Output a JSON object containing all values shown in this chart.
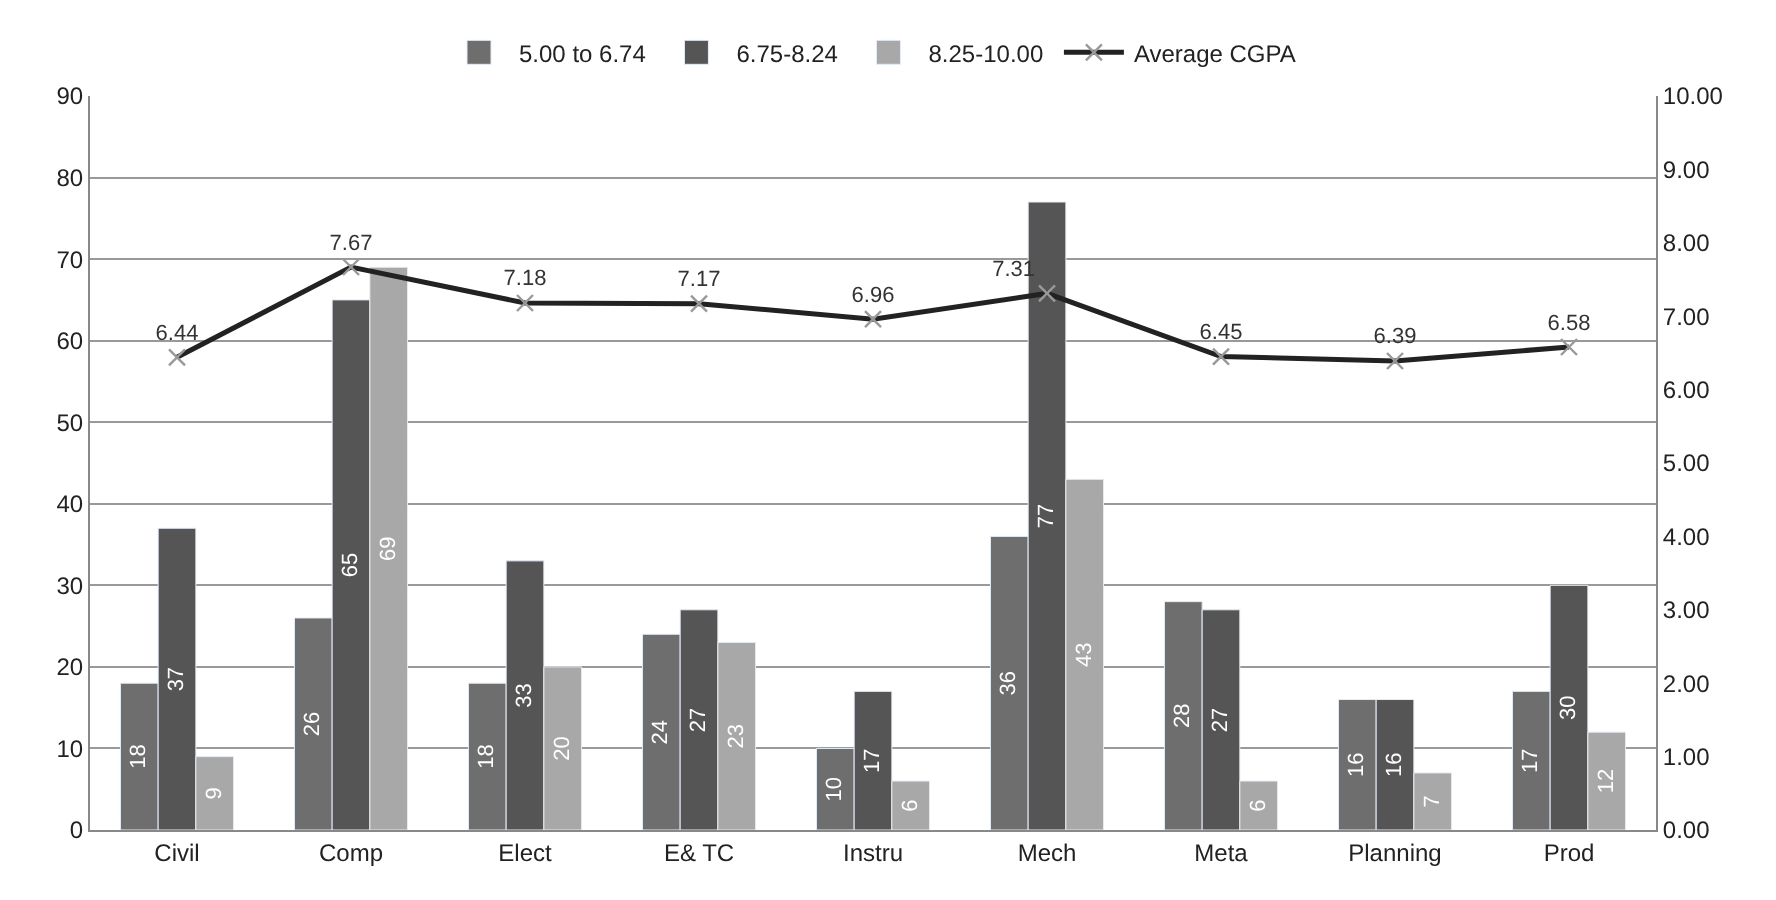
{
  "chart_data": {
    "type": "bar",
    "categories": [
      "Civil",
      "Comp",
      "Elect",
      "E& TC",
      "Instru",
      "Mech",
      "Meta",
      "Planning",
      "Prod"
    ],
    "series": [
      {
        "name": "5.00 to 6.74",
        "color": "#6e6e6e",
        "values": [
          18,
          26,
          18,
          24,
          10,
          36,
          28,
          16,
          17
        ]
      },
      {
        "name": "6.75-8.24",
        "color": "#555555",
        "values": [
          37,
          65,
          33,
          27,
          17,
          77,
          27,
          16,
          30
        ]
      },
      {
        "name": "8.25-10.00",
        "color": "#a8a8a8",
        "values": [
          9,
          69,
          20,
          23,
          6,
          43,
          6,
          7,
          12
        ]
      },
      {
        "name": "Average CGPA",
        "type": "line",
        "axis": "y2",
        "color": "#222222",
        "marker": "cross",
        "values": [
          6.44,
          7.67,
          7.18,
          7.17,
          6.96,
          7.31,
          6.45,
          6.39,
          6.58
        ]
      }
    ],
    "data_labels": true,
    "ylim": [
      0,
      90
    ],
    "yticks": [
      0,
      10,
      20,
      30,
      40,
      50,
      60,
      70,
      80,
      90
    ],
    "y2lim": [
      0,
      10
    ],
    "y2ticks": [
      {
        "value": 0,
        "label": "0.00"
      },
      {
        "value": 1,
        "label": "1.00"
      },
      {
        "value": 2,
        "label": "2.00"
      },
      {
        "value": 3,
        "label": "3.00"
      },
      {
        "value": 4,
        "label": "4.00"
      },
      {
        "value": 5,
        "label": "5.00"
      },
      {
        "value": 6,
        "label": "6.00"
      },
      {
        "value": 7,
        "label": "7.00"
      },
      {
        "value": 8,
        "label": "8.00"
      },
      {
        "value": 9,
        "label": "9.00"
      },
      {
        "value": 10,
        "label": "10.00"
      }
    ],
    "grid": "y",
    "legend": "top"
  }
}
